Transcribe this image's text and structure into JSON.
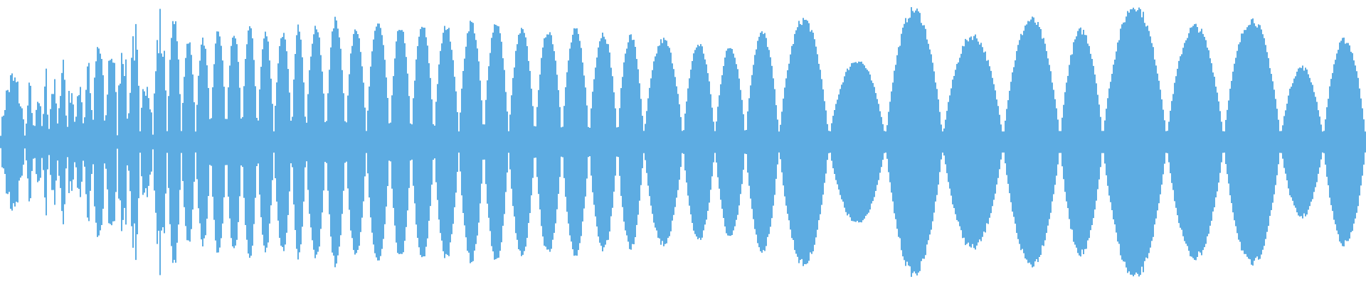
{
  "chart_data": {
    "type": "waveform",
    "title": "",
    "xlabel": "",
    "ylabel": "",
    "ylim": [
      -1,
      1
    ],
    "grid": false,
    "color": "#5dace2",
    "lobe_peak_amplitudes": [
      0.55,
      0.45,
      0.35,
      0.6,
      0.5,
      0.75,
      0.5,
      0.55,
      0.7,
      0.85,
      0.85,
      0.9,
      0.95,
      0.6,
      1.0,
      0.9,
      0.75,
      0.75,
      0.82,
      0.8,
      0.85,
      0.8,
      0.8,
      0.85,
      0.85,
      0.9,
      0.85,
      0.88,
      0.85,
      0.85,
      0.85,
      0.88,
      0.88,
      0.82,
      0.82,
      0.82,
      0.8,
      0.78,
      0.75,
      0.72,
      0.7,
      0.8,
      0.9,
      0.6,
      0.97,
      0.78,
      0.9,
      0.82,
      1.0,
      0.85,
      0.9,
      0.55,
      0.75
    ]
  }
}
